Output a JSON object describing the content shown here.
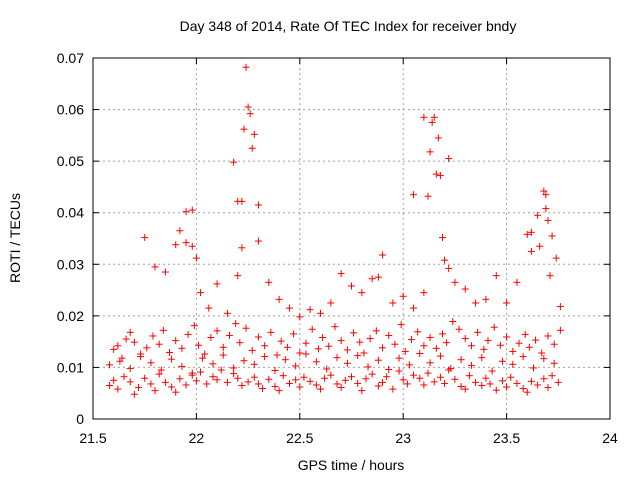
{
  "chart_data": {
    "type": "scatter",
    "title": "Day 348 of 2014, Rate Of TEC Index for receiver bndy",
    "xlabel": "GPS time / hours",
    "ylabel": "ROTI / TECUs",
    "xlim": [
      21.5,
      24
    ],
    "ylim": [
      0,
      0.07
    ],
    "x_ticks": [
      21.5,
      22,
      22.5,
      23,
      23.5,
      24
    ],
    "x_tick_labels": [
      "21.5",
      "22",
      "22.5",
      "23",
      "23.5",
      "24"
    ],
    "y_ticks": [
      0,
      0.01,
      0.02,
      0.03,
      0.04,
      0.05,
      0.06,
      0.07
    ],
    "y_tick_labels": [
      "0",
      "0.01",
      "0.02",
      "0.03",
      "0.04",
      "0.05",
      "0.06",
      "0.07"
    ],
    "grid": true,
    "marker": "+",
    "marker_color": "#ff0000",
    "series": [
      {
        "name": "ROTI",
        "x": [
          21.58,
          21.6,
          21.62,
          21.65,
          21.68,
          21.7,
          21.72,
          21.75,
          21.78,
          21.8,
          21.82,
          21.85,
          21.88,
          21.9,
          21.92,
          21.95,
          21.98,
          22.0,
          22.02,
          22.05,
          22.08,
          22.1,
          22.12,
          22.15,
          22.18,
          22.2,
          22.22,
          22.25,
          22.28,
          22.3,
          22.32,
          22.35,
          22.38,
          22.4,
          22.42,
          22.45,
          22.48,
          22.5,
          22.52,
          22.55,
          22.58,
          22.6,
          22.62,
          22.65,
          22.68,
          22.7,
          22.72,
          22.75,
          22.78,
          22.8,
          22.82,
          22.85,
          22.88,
          22.9,
          22.92,
          22.95,
          22.98,
          23.0,
          23.02,
          23.05,
          23.08,
          23.1,
          23.12,
          23.15,
          23.18,
          23.2,
          23.22,
          23.25,
          23.28,
          23.3,
          23.32,
          23.35,
          23.38,
          23.4,
          23.42,
          23.45,
          23.48,
          23.5,
          23.52,
          23.55,
          23.58,
          23.6,
          23.62,
          23.65,
          23.68,
          23.7,
          23.72,
          23.75,
          21.6,
          21.62,
          21.64,
          21.66,
          21.68,
          21.7,
          21.73,
          21.76,
          21.79,
          21.82,
          21.84,
          21.87,
          21.9,
          21.93,
          21.96,
          21.99,
          22.01,
          22.04,
          22.07,
          22.1,
          22.13,
          22.16,
          22.19,
          22.21,
          22.24,
          22.27,
          22.3,
          22.33,
          22.36,
          22.39,
          22.41,
          22.44,
          22.47,
          22.5,
          22.53,
          22.56,
          22.59,
          22.61,
          22.64,
          22.67,
          22.7,
          22.73,
          22.76,
          22.79,
          22.81,
          22.84,
          22.87,
          22.9,
          22.93,
          22.96,
          22.99,
          23.01,
          23.04,
          23.07,
          23.1,
          23.13,
          23.16,
          23.19,
          23.21,
          23.24,
          23.27,
          23.3,
          23.33,
          23.36,
          23.39,
          23.41,
          23.44,
          23.47,
          23.5,
          23.53,
          23.56,
          23.59,
          23.61,
          23.64,
          23.67,
          23.7,
          23.73,
          23.76,
          21.58,
          21.63,
          21.68,
          21.73,
          21.78,
          21.83,
          21.88,
          21.93,
          21.98,
          22.03,
          22.08,
          22.13,
          22.18,
          22.23,
          22.28,
          22.33,
          22.38,
          22.43,
          22.48,
          22.53,
          22.58,
          22.63,
          22.68,
          22.73,
          22.78,
          22.83,
          22.88,
          22.93,
          22.98,
          23.03,
          23.08,
          23.13,
          23.18,
          23.23,
          23.28,
          23.33,
          23.38,
          23.43,
          23.48,
          23.53,
          23.58,
          23.63,
          23.68,
          23.73,
          21.75,
          21.8,
          21.85,
          21.9,
          21.95,
          21.98,
          22.02,
          22.06,
          22.1,
          22.15,
          22.2,
          22.22,
          22.23,
          22.24,
          22.25,
          22.27,
          22.3,
          22.35,
          22.4,
          22.45,
          22.5,
          22.55,
          22.6,
          22.65,
          22.7,
          22.75,
          22.8,
          22.85,
          22.88,
          22.9,
          22.95,
          23.0,
          23.05,
          23.1,
          23.12,
          23.13,
          23.15,
          23.17,
          23.18,
          23.2,
          23.22,
          23.25,
          23.3,
          23.35,
          23.4,
          23.45,
          23.5,
          23.55,
          23.6,
          23.62,
          23.65,
          23.68,
          23.69,
          23.7,
          23.72,
          23.74,
          23.76,
          21.92,
          21.95,
          21.98,
          22.0,
          22.18,
          22.2,
          22.22,
          22.26,
          22.28,
          22.3,
          23.05,
          23.1,
          23.14,
          23.16,
          23.19,
          23.22,
          23.62,
          23.66,
          23.69,
          23.71
        ],
        "y": [
          0.0065,
          0.0075,
          0.0058,
          0.0082,
          0.0072,
          0.0048,
          0.0061,
          0.0079,
          0.0068,
          0.0055,
          0.0087,
          0.0071,
          0.0062,
          0.0052,
          0.0078,
          0.0066,
          0.0085,
          0.0074,
          0.0091,
          0.0068,
          0.0082,
          0.0076,
          0.0095,
          0.0071,
          0.0088,
          0.0079,
          0.0065,
          0.0072,
          0.0081,
          0.0068,
          0.0059,
          0.0077,
          0.0063,
          0.0055,
          0.0084,
          0.0069,
          0.0076,
          0.0062,
          0.0081,
          0.0073,
          0.0066,
          0.0058,
          0.0079,
          0.0085,
          0.0068,
          0.0061,
          0.0075,
          0.0082,
          0.0069,
          0.0055,
          0.0078,
          0.0087,
          0.0064,
          0.0071,
          0.0082,
          0.0058,
          0.0093,
          0.0076,
          0.0068,
          0.0085,
          0.0079,
          0.0066,
          0.0089,
          0.0072,
          0.0081,
          0.0069,
          0.0095,
          0.0077,
          0.0063,
          0.0058,
          0.0084,
          0.0071,
          0.0065,
          0.0079,
          0.0068,
          0.0056,
          0.0074,
          0.0062,
          0.0081,
          0.0069,
          0.0059,
          0.0052,
          0.0073,
          0.0066,
          0.0078,
          0.0061,
          0.0084,
          0.0071,
          0.0135,
          0.0142,
          0.0118,
          0.0155,
          0.0168,
          0.0149,
          0.0126,
          0.0138,
          0.0161,
          0.0145,
          0.0172,
          0.0129,
          0.0152,
          0.0137,
          0.0164,
          0.0181,
          0.0143,
          0.0126,
          0.0158,
          0.0171,
          0.0139,
          0.0162,
          0.0185,
          0.0148,
          0.0176,
          0.0133,
          0.0159,
          0.0142,
          0.0168,
          0.0124,
          0.0151,
          0.0139,
          0.0165,
          0.0128,
          0.0147,
          0.0174,
          0.0136,
          0.0158,
          0.0141,
          0.0179,
          0.0152,
          0.0134,
          0.0167,
          0.0149,
          0.0128,
          0.0156,
          0.0171,
          0.0138,
          0.0162,
          0.0145,
          0.0183,
          0.0131,
          0.0154,
          0.0169,
          0.0142,
          0.0158,
          0.0137,
          0.0165,
          0.0148,
          0.0189,
          0.0174,
          0.0156,
          0.0142,
          0.0168,
          0.0135,
          0.0152,
          0.0178,
          0.0143,
          0.0159,
          0.0131,
          0.0147,
          0.0164,
          0.0139,
          0.0153,
          0.0128,
          0.0161,
          0.0145,
          0.0172,
          0.0105,
          0.0112,
          0.0098,
          0.0121,
          0.0109,
          0.0095,
          0.0116,
          0.0102,
          0.0089,
          0.0118,
          0.0107,
          0.0124,
          0.0099,
          0.0113,
          0.0106,
          0.0121,
          0.0094,
          0.0115,
          0.0103,
          0.0126,
          0.0111,
          0.0097,
          0.0119,
          0.0108,
          0.0123,
          0.0101,
          0.0114,
          0.0096,
          0.0118,
          0.0105,
          0.0127,
          0.0109,
          0.0122,
          0.0098,
          0.0115,
          0.0104,
          0.0119,
          0.0093,
          0.0112,
          0.0106,
          0.0121,
          0.0099,
          0.0117,
          0.0108,
          0.0352,
          0.0295,
          0.0285,
          0.0338,
          0.0402,
          0.0335,
          0.0245,
          0.0215,
          0.0262,
          0.0205,
          0.0278,
          0.0422,
          0.0562,
          0.0682,
          0.0605,
          0.0525,
          0.0345,
          0.0265,
          0.0232,
          0.0215,
          0.0198,
          0.0212,
          0.0205,
          0.0225,
          0.0282,
          0.0258,
          0.0245,
          0.0272,
          0.0275,
          0.0318,
          0.0225,
          0.0238,
          0.0215,
          0.0245,
          0.0432,
          0.0518,
          0.0585,
          0.0545,
          0.0472,
          0.0308,
          0.0505,
          0.0265,
          0.0252,
          0.0225,
          0.0232,
          0.0278,
          0.0225,
          0.0265,
          0.0358,
          0.0325,
          0.0395,
          0.0442,
          0.0435,
          0.0385,
          0.0355,
          0.0312,
          0.0218,
          0.0365,
          0.0342,
          0.0405,
          0.0312,
          0.0498,
          0.0422,
          0.0332,
          0.0592,
          0.0552,
          0.0415,
          0.0435,
          0.0585,
          0.0575,
          0.0475,
          0.0352,
          0.0292,
          0.0362,
          0.0335,
          0.0408,
          0.0278
        ]
      }
    ]
  }
}
